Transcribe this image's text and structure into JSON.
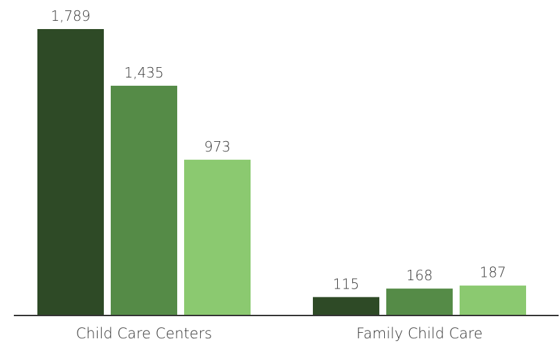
{
  "chart_data": {
    "type": "bar",
    "title": "",
    "xlabel": "",
    "ylabel": "",
    "categories": [
      "Child Care Centers",
      "Family Child Care"
    ],
    "series": [
      {
        "values": [
          1789,
          115
        ],
        "color": "#2e4a26"
      },
      {
        "values": [
          1435,
          168
        ],
        "color": "#558b47"
      },
      {
        "values": [
          973,
          187
        ],
        "color": "#8bc970"
      }
    ],
    "value_labels": [
      [
        "1,789",
        "115"
      ],
      [
        "1,435",
        "168"
      ],
      [
        "973",
        "187"
      ]
    ],
    "ylim": [
      0,
      1789
    ],
    "grid": false,
    "legend": "none",
    "axis_color": "#333333"
  }
}
